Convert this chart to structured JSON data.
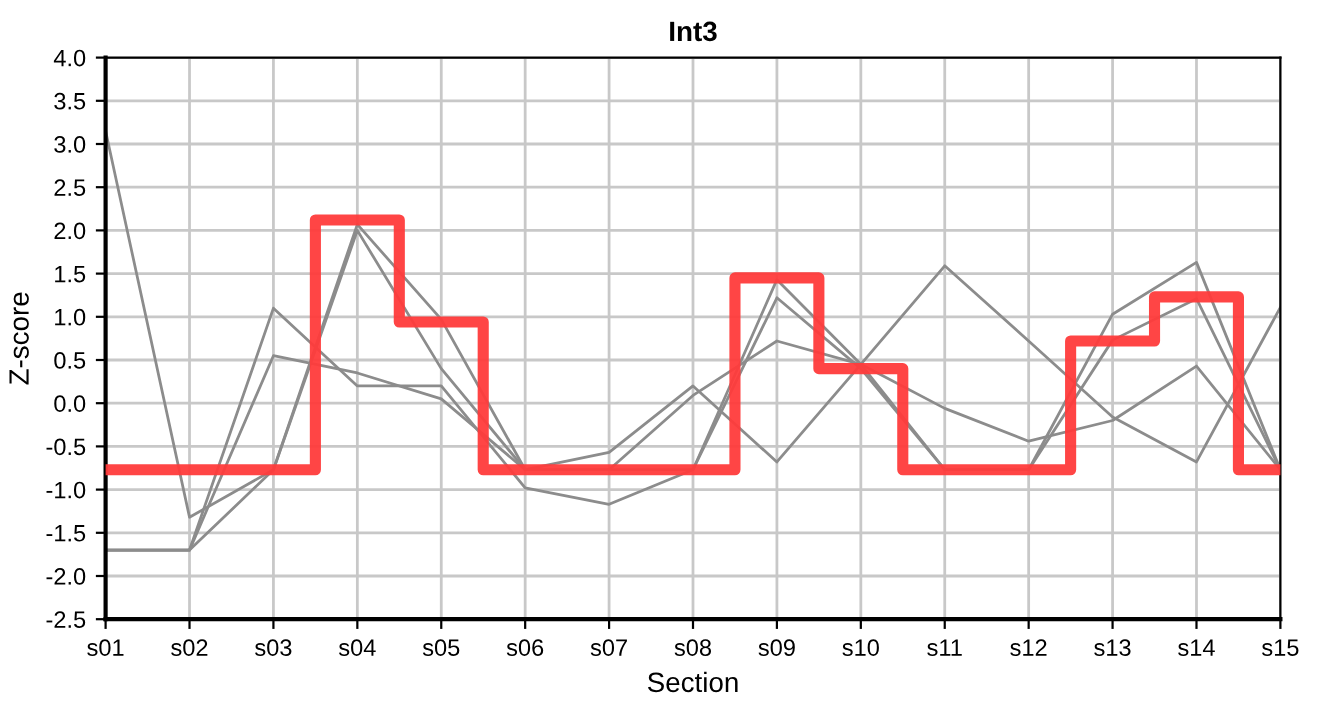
{
  "chart_data": {
    "type": "line",
    "title": "Int3",
    "xlabel": "Section",
    "ylabel": "Z-score",
    "categories": [
      "s01",
      "s02",
      "s03",
      "s04",
      "s05",
      "s06",
      "s07",
      "s08",
      "s09",
      "s10",
      "s11",
      "s12",
      "s13",
      "s14",
      "s15"
    ],
    "ylim": [
      -2.5,
      4.0
    ],
    "yticks": [
      {
        "value": -2.5,
        "label": "-2.5"
      },
      {
        "value": -2.0,
        "label": "-2.0"
      },
      {
        "value": -1.5,
        "label": "-1.5"
      },
      {
        "value": -1.0,
        "label": "-1.0"
      },
      {
        "value": -0.5,
        "label": "-0.5"
      },
      {
        "value": 0.0,
        "label": "0.0"
      },
      {
        "value": 0.5,
        "label": "0.5"
      },
      {
        "value": 1.0,
        "label": "1.0"
      },
      {
        "value": 1.5,
        "label": "1.5"
      },
      {
        "value": 2.0,
        "label": "2.0"
      },
      {
        "value": 2.5,
        "label": "2.5"
      },
      {
        "value": 3.0,
        "label": "3.0"
      },
      {
        "value": 3.5,
        "label": "3.5"
      },
      {
        "value": 4.0,
        "label": "4.0"
      }
    ],
    "grid": true,
    "series": [
      {
        "color": "#8c8c8c",
        "values": [
          3.15,
          -1.32,
          -0.77,
          2.07,
          0.97,
          -0.77,
          -0.57,
          0.2,
          -0.68,
          0.45,
          1.59,
          0.72,
          -0.16,
          -0.68,
          1.11
        ]
      },
      {
        "color": "#8c8c8c",
        "values": [
          -1.7,
          -1.7,
          0.55,
          0.35,
          0.05,
          -0.77,
          -0.77,
          0.09,
          0.72,
          0.45,
          -0.06,
          -0.44,
          -0.2,
          0.43,
          -0.77
        ]
      },
      {
        "color": "#8c8c8c",
        "values": [
          -1.7,
          -1.7,
          1.1,
          0.2,
          0.2,
          -0.98,
          -1.17,
          -0.77,
          1.43,
          0.45,
          -0.77,
          -0.77,
          1.03,
          1.63,
          -0.77
        ]
      },
      {
        "color": "#8c8c8c",
        "values": [
          -1.7,
          -1.7,
          -0.77,
          2.0,
          0.4,
          -0.77,
          -0.77,
          -0.77,
          1.22,
          0.4,
          -0.77,
          -0.77,
          0.73,
          1.21,
          -0.77
        ]
      },
      {
        "type": "step",
        "color": "#ff3b3b",
        "values": [
          -0.77,
          -0.77,
          -0.77,
          2.12,
          0.94,
          -0.77,
          -0.77,
          -0.77,
          1.45,
          0.4,
          -0.77,
          -0.77,
          0.72,
          1.23,
          -0.77
        ]
      }
    ]
  }
}
